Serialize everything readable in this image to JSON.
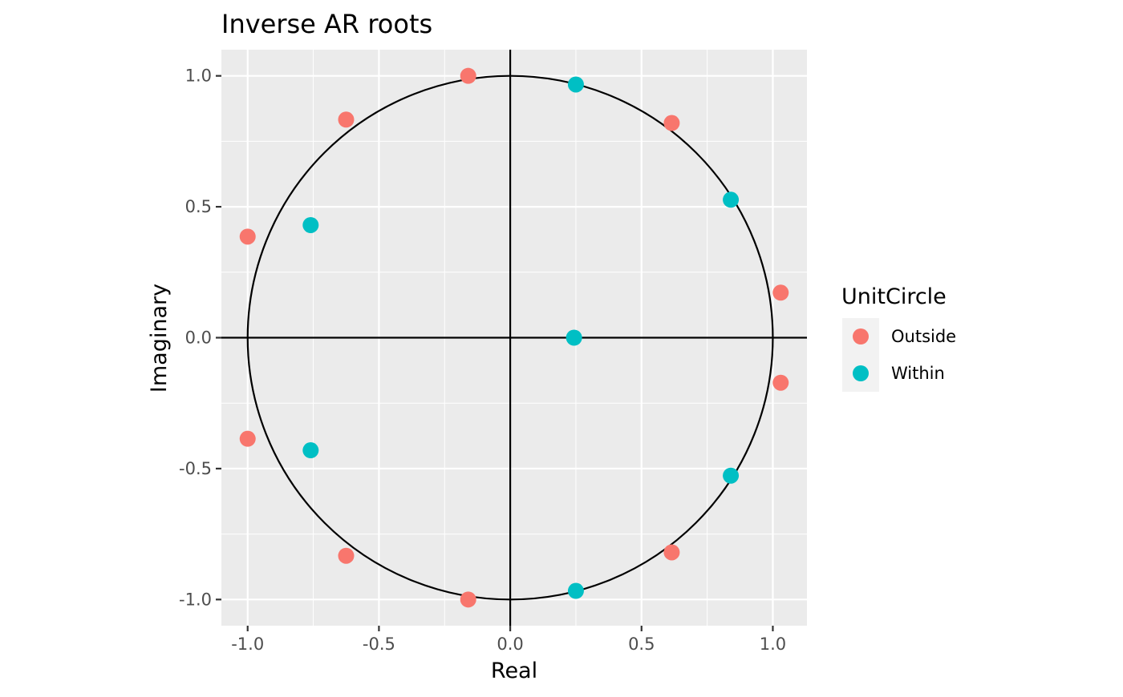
{
  "chart_data": {
    "type": "scatter",
    "title": "Inverse AR roots",
    "xlabel": "Real",
    "ylabel": "Imaginary",
    "xlim": [
      -1.1,
      1.13
    ],
    "ylim": [
      -1.1,
      1.1
    ],
    "x_ticks": [
      -1.0,
      -0.5,
      0.0,
      0.5,
      1.0
    ],
    "y_ticks": [
      -1.0,
      -0.5,
      0.0,
      0.5,
      1.0
    ],
    "x_tick_labels": [
      "-1.0",
      "-0.5",
      "0.0",
      "0.5",
      "1.0"
    ],
    "y_tick_labels": [
      "-1.0",
      "-0.5",
      "0.0",
      "0.5",
      "1.0"
    ],
    "x_minor_ticks": [
      -0.75,
      -0.25,
      0.25,
      0.75
    ],
    "y_minor_ticks": [
      -0.75,
      -0.25,
      0.25,
      0.75
    ],
    "grid": true,
    "unit_circle": true,
    "reference_lines": {
      "x": 0,
      "y": 0
    },
    "legend": {
      "title": "UnitCircle",
      "position": "right"
    },
    "series": [
      {
        "name": "Outside",
        "color": "#F8766D",
        "points": [
          {
            "x": -0.16,
            "y": 1.0
          },
          {
            "x": -0.16,
            "y": -1.0
          },
          {
            "x": -0.625,
            "y": 0.833
          },
          {
            "x": -0.625,
            "y": -0.833
          },
          {
            "x": -1.0,
            "y": 0.386
          },
          {
            "x": -1.0,
            "y": -0.386
          },
          {
            "x": 0.615,
            "y": 0.82
          },
          {
            "x": 0.615,
            "y": -0.82
          },
          {
            "x": 1.03,
            "y": 0.172
          },
          {
            "x": 1.03,
            "y": -0.172
          }
        ]
      },
      {
        "name": "Within",
        "color": "#00BFC4",
        "points": [
          {
            "x": 0.25,
            "y": 0.967
          },
          {
            "x": 0.25,
            "y": -0.967
          },
          {
            "x": 0.84,
            "y": 0.527
          },
          {
            "x": 0.84,
            "y": -0.527
          },
          {
            "x": -0.76,
            "y": 0.43
          },
          {
            "x": -0.76,
            "y": -0.43
          },
          {
            "x": 0.243,
            "y": 0.0
          }
        ]
      }
    ],
    "colors": {
      "panel_background": "#EBEBEB",
      "grid": "#FFFFFF",
      "axis_text": "#4D4D4D",
      "legend_key_background": "#F2F2F2"
    }
  }
}
